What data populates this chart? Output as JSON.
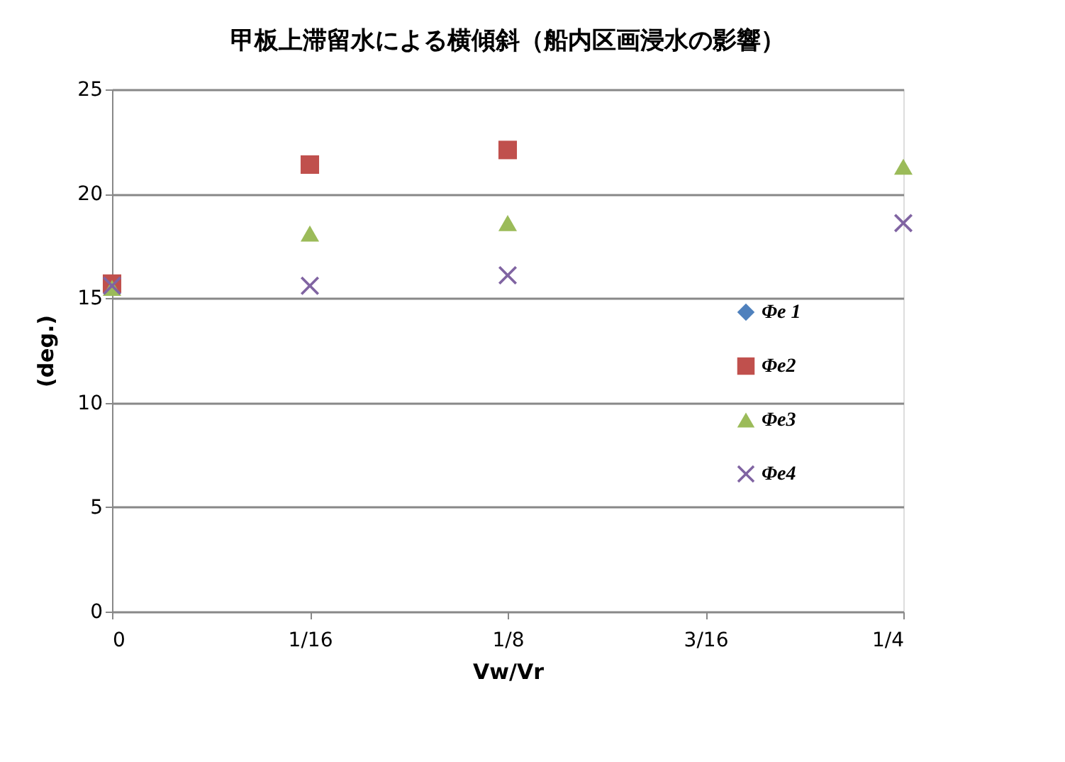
{
  "chart_data": {
    "type": "scatter",
    "title": "甲板上滞留水による横傾斜（船内区画浸水の影響）",
    "xlabel": "Vw/Vr",
    "ylabel": "(deg.)",
    "x": [
      0,
      0.0625,
      0.125,
      0.25
    ],
    "series": [
      {
        "name": "Φe 1",
        "color": "#4f81bd",
        "marker": "diamond",
        "values": [
          null,
          null,
          null,
          null
        ]
      },
      {
        "name": "Φe2",
        "color": "#c0504d",
        "marker": "square",
        "values": [
          15.7,
          21.4,
          22.1,
          null
        ]
      },
      {
        "name": "Φe3",
        "color": "#9bbb59",
        "marker": "triangle",
        "values": [
          15.5,
          18.1,
          18.6,
          21.3
        ]
      },
      {
        "name": "Φe4",
        "color": "#8064a2",
        "marker": "cross",
        "values": [
          15.6,
          15.6,
          16.1,
          18.6
        ]
      }
    ],
    "xlim": [
      0,
      0.25
    ],
    "xticks": [
      0,
      {
        "value": 0.0625,
        "label": "1/16"
      },
      {
        "value": 0.125,
        "label": "1/8"
      },
      {
        "value": 0.1875,
        "label": "3/16"
      },
      {
        "value": 0.25,
        "label": "1/4"
      }
    ],
    "ylim": [
      0,
      25
    ],
    "yticks": [
      0,
      5,
      10,
      15,
      20,
      25
    ],
    "grid": "y",
    "legend": "right"
  }
}
